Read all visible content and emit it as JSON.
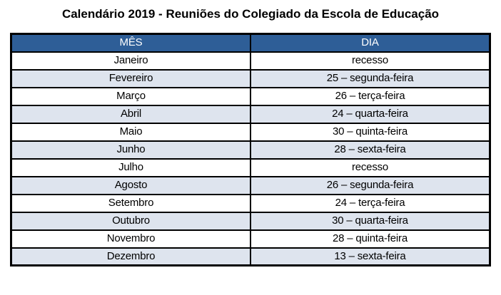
{
  "title": "Calendário 2019 - Reuniões do Colegiado da Escola de Educação",
  "table": {
    "headers": [
      "MÊS",
      "DIA"
    ],
    "rows": [
      {
        "month": "Janeiro",
        "day": "recesso"
      },
      {
        "month": "Fevereiro",
        "day": "25 – segunda-feira"
      },
      {
        "month": "Março",
        "day": "26 – terça-feira"
      },
      {
        "month": "Abril",
        "day": "24 – quarta-feira"
      },
      {
        "month": "Maio",
        "day": "30 – quinta-feira"
      },
      {
        "month": "Junho",
        "day": "28 – sexta-feira"
      },
      {
        "month": "Julho",
        "day": "recesso"
      },
      {
        "month": "Agosto",
        "day": "26 – segunda-feira"
      },
      {
        "month": "Setembro",
        "day": "24 – terça-feira"
      },
      {
        "month": "Outubro",
        "day": "30 – quarta-feira"
      },
      {
        "month": "Novembro",
        "day": "28 – quinta-feira"
      },
      {
        "month": "Dezembro",
        "day": "13 – sexta-feira"
      }
    ]
  },
  "colors": {
    "header_bg": "#2e5e97",
    "header_text": "#ffffff",
    "alt_row_bg": "#dee4ee",
    "row_bg": "#ffffff",
    "border": "#000000",
    "text": "#000000"
  }
}
